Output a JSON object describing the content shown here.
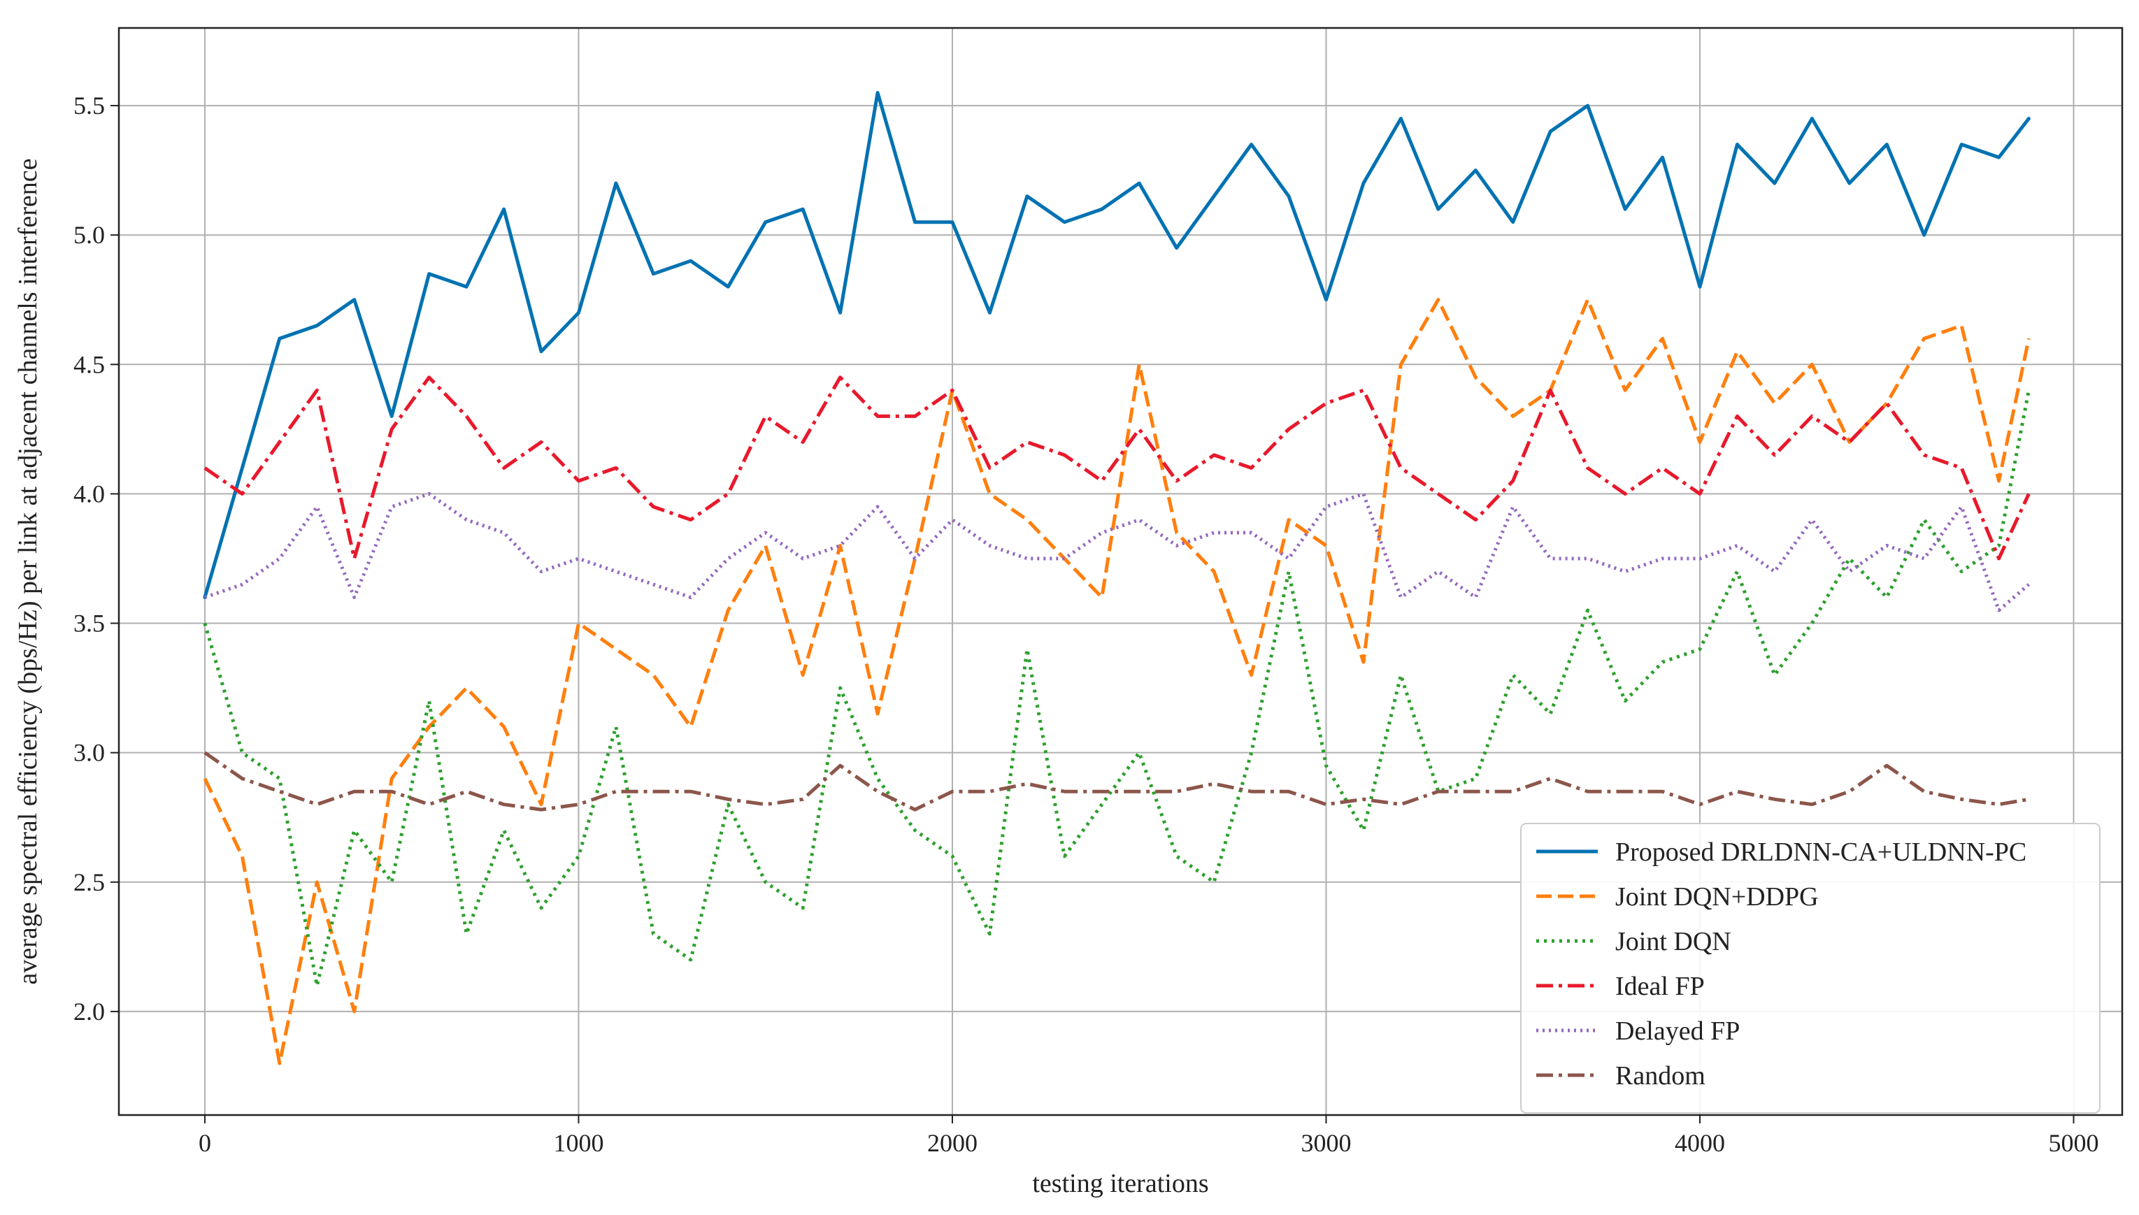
{
  "chart_data": {
    "type": "line",
    "title": "",
    "xlabel": "testing iterations",
    "ylabel": "average spectral efficiency (bps/Hz) per link at adjacent channels interference",
    "xlim": [
      -230,
      5130
    ],
    "ylim": [
      1.6,
      5.8
    ],
    "xticks": [
      0,
      1000,
      2000,
      3000,
      4000,
      5000
    ],
    "yticks": [
      2.0,
      2.5,
      3.0,
      3.5,
      4.0,
      4.5,
      5.0,
      5.5
    ],
    "grid": true,
    "legend_position": "lower-right",
    "x": [
      0,
      100,
      200,
      300,
      400,
      500,
      600,
      700,
      800,
      900,
      1000,
      1100,
      1200,
      1300,
      1400,
      1500,
      1600,
      1700,
      1800,
      1900,
      2000,
      2100,
      2200,
      2300,
      2400,
      2500,
      2600,
      2700,
      2800,
      2900,
      3000,
      3100,
      3200,
      3300,
      3400,
      3500,
      3600,
      3700,
      3800,
      3900,
      4000,
      4100,
      4200,
      4300,
      4400,
      4500,
      4600,
      4700,
      4800,
      4880
    ],
    "series": [
      {
        "name": "Proposed DRLDNN-CA+ULDNN-PC",
        "color": "#0072b2",
        "dash": "solid",
        "values": [
          3.6,
          4.1,
          4.6,
          4.65,
          4.75,
          4.3,
          4.85,
          4.8,
          5.1,
          4.55,
          4.7,
          5.2,
          4.85,
          4.9,
          4.8,
          5.05,
          5.1,
          4.7,
          5.55,
          5.05,
          5.05,
          4.7,
          5.15,
          5.05,
          5.1,
          5.2,
          4.95,
          5.15,
          5.35,
          5.15,
          4.75,
          5.2,
          5.45,
          5.1,
          5.25,
          5.05,
          5.4,
          5.5,
          5.1,
          5.3,
          4.8,
          5.35,
          5.2,
          5.45,
          5.2,
          5.35,
          5.0,
          5.35,
          5.3,
          5.45
        ]
      },
      {
        "name": "Joint DQN+DDPG",
        "color": "#ff7f0e",
        "dash": "long-dash",
        "values": [
          2.9,
          2.6,
          1.8,
          2.5,
          2.0,
          2.9,
          3.1,
          3.25,
          3.1,
          2.8,
          3.5,
          3.4,
          3.3,
          3.1,
          3.55,
          3.8,
          3.3,
          3.8,
          3.15,
          3.75,
          4.4,
          4.0,
          3.9,
          3.75,
          3.6,
          4.5,
          3.85,
          3.7,
          3.3,
          3.9,
          3.8,
          3.35,
          4.5,
          4.75,
          4.45,
          4.3,
          4.4,
          4.75,
          4.4,
          4.6,
          4.2,
          4.55,
          4.35,
          4.5,
          4.2,
          4.35,
          4.6,
          4.65,
          4.05,
          4.6
        ]
      },
      {
        "name": "Joint DQN",
        "color": "#2ca02c",
        "dash": "dotted",
        "values": [
          3.5,
          3.0,
          2.9,
          2.1,
          2.7,
          2.5,
          3.2,
          2.3,
          2.7,
          2.4,
          2.6,
          3.1,
          2.3,
          2.2,
          2.8,
          2.5,
          2.4,
          3.25,
          2.9,
          2.7,
          2.6,
          2.3,
          3.4,
          2.6,
          2.8,
          3.0,
          2.6,
          2.5,
          3.0,
          3.7,
          2.95,
          2.7,
          3.3,
          2.85,
          2.9,
          3.3,
          3.15,
          3.55,
          3.2,
          3.35,
          3.4,
          3.7,
          3.3,
          3.5,
          3.75,
          3.6,
          3.9,
          3.7,
          3.8,
          4.4
        ]
      },
      {
        "name": "Ideal FP",
        "color": "#e8192c",
        "dash": "dash-dot",
        "values": [
          4.1,
          4.0,
          4.2,
          4.4,
          3.75,
          4.25,
          4.45,
          4.3,
          4.1,
          4.2,
          4.05,
          4.1,
          3.95,
          3.9,
          4.0,
          4.3,
          4.2,
          4.45,
          4.3,
          4.3,
          4.4,
          4.1,
          4.2,
          4.15,
          4.05,
          4.25,
          4.05,
          4.15,
          4.1,
          4.25,
          4.35,
          4.4,
          4.1,
          4.0,
          3.9,
          4.05,
          4.4,
          4.1,
          4.0,
          4.1,
          4.0,
          4.3,
          4.15,
          4.3,
          4.2,
          4.35,
          4.15,
          4.1,
          3.75,
          4.0
        ]
      },
      {
        "name": "Delayed FP",
        "color": "#9467bd",
        "dash": "fine-dot",
        "values": [
          3.6,
          3.65,
          3.75,
          3.95,
          3.6,
          3.95,
          4.0,
          3.9,
          3.85,
          3.7,
          3.75,
          3.7,
          3.65,
          3.6,
          3.75,
          3.85,
          3.75,
          3.8,
          3.95,
          3.75,
          3.9,
          3.8,
          3.75,
          3.75,
          3.85,
          3.9,
          3.8,
          3.85,
          3.85,
          3.75,
          3.95,
          4.0,
          3.6,
          3.7,
          3.6,
          3.95,
          3.75,
          3.75,
          3.7,
          3.75,
          3.75,
          3.8,
          3.7,
          3.9,
          3.7,
          3.8,
          3.75,
          3.95,
          3.55,
          3.65
        ]
      },
      {
        "name": "Random",
        "color": "#8c564b",
        "dash": "dash-dot",
        "values": [
          3.0,
          2.9,
          2.85,
          2.8,
          2.85,
          2.85,
          2.8,
          2.85,
          2.8,
          2.78,
          2.8,
          2.85,
          2.85,
          2.85,
          2.82,
          2.8,
          2.82,
          2.95,
          2.85,
          2.78,
          2.85,
          2.85,
          2.88,
          2.85,
          2.85,
          2.85,
          2.85,
          2.88,
          2.85,
          2.85,
          2.8,
          2.82,
          2.8,
          2.85,
          2.85,
          2.85,
          2.9,
          2.85,
          2.85,
          2.85,
          2.8,
          2.85,
          2.82,
          2.8,
          2.85,
          2.95,
          2.85,
          2.82,
          2.8,
          2.82
        ]
      }
    ]
  }
}
